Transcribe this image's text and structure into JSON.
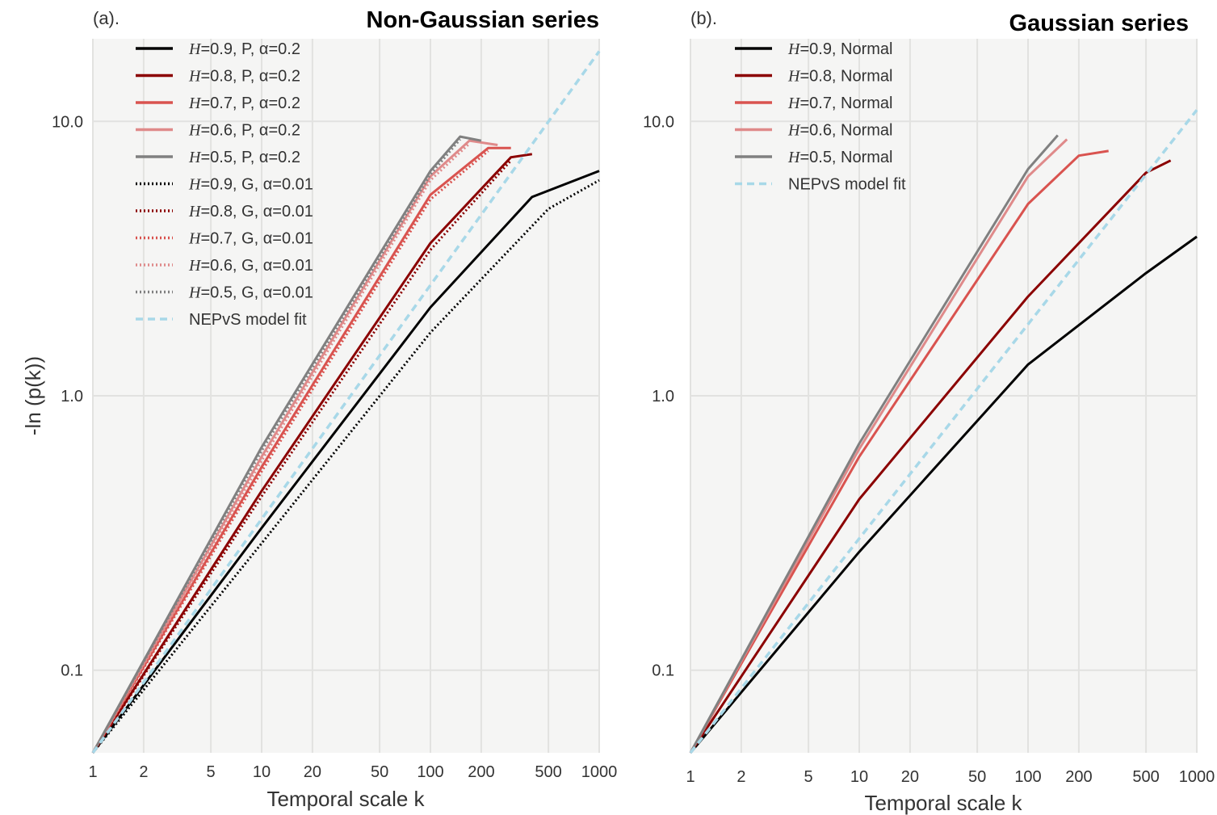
{
  "chart_data": [
    {
      "type": "line",
      "panel_label": "(a).",
      "title": "Non-Gaussian series",
      "xlabel": "Temporal scale k",
      "ylabel": "-ln (p(k))",
      "xscale": "log",
      "yscale": "log",
      "xlim": [
        1,
        1000
      ],
      "ylim": [
        0.05,
        20
      ],
      "xticks": [
        1,
        2,
        5,
        10,
        20,
        50,
        100,
        200,
        500,
        1000
      ],
      "xtick_labels": [
        "1",
        "2",
        "5",
        "10",
        "20",
        "50",
        "100",
        "200",
        "500",
        "1000"
      ],
      "yticks": [
        0.1,
        1.0,
        10.0
      ],
      "ytick_labels": [
        "0.1",
        "1.0",
        "10.0"
      ],
      "grid": true,
      "legend_position": "top-left",
      "series": [
        {
          "name": "H=0.9, P, α=0.2",
          "color": "#000000",
          "style": "solid",
          "x": [
            1,
            10,
            100,
            400,
            1000
          ],
          "y": [
            0.05,
            0.33,
            2.1,
            5.3,
            6.6
          ]
        },
        {
          "name": "H=0.8, P, α=0.2",
          "color": "#8b0000",
          "style": "solid",
          "x": [
            1,
            10,
            100,
            300,
            400
          ],
          "y": [
            0.05,
            0.45,
            3.6,
            7.4,
            7.6
          ]
        },
        {
          "name": "H=0.7, P, α=0.2",
          "color": "#d9534f",
          "style": "solid",
          "x": [
            1,
            10,
            100,
            220,
            300
          ],
          "y": [
            0.05,
            0.55,
            5.4,
            8.0,
            8.0
          ]
        },
        {
          "name": "H=0.6, P, α=0.2",
          "color": "#df8a8a",
          "style": "solid",
          "x": [
            1,
            10,
            100,
            170,
            250
          ],
          "y": [
            0.05,
            0.6,
            6.3,
            8.5,
            8.2
          ]
        },
        {
          "name": "H=0.5, P, α=0.2",
          "color": "#808080",
          "style": "solid",
          "x": [
            1,
            10,
            100,
            150,
            200
          ],
          "y": [
            0.05,
            0.65,
            6.6,
            8.8,
            8.5
          ]
        },
        {
          "name": "H=0.9, G, α=0.01",
          "color": "#000000",
          "style": "dotted",
          "x": [
            1,
            10,
            100,
            500,
            1000
          ],
          "y": [
            0.05,
            0.29,
            1.7,
            4.8,
            6.1
          ]
        },
        {
          "name": "H=0.8, G, α=0.01",
          "color": "#8b0000",
          "style": "dotted",
          "x": [
            1,
            10,
            100,
            300
          ],
          "y": [
            0.05,
            0.43,
            3.4,
            7.2
          ]
        },
        {
          "name": "H=0.7, G, α=0.01",
          "color": "#d9534f",
          "style": "dotted",
          "x": [
            1,
            10,
            100,
            220
          ],
          "y": [
            0.05,
            0.53,
            5.2,
            7.8
          ]
        },
        {
          "name": "H=0.6, G, α=0.01",
          "color": "#df8a8a",
          "style": "dotted",
          "x": [
            1,
            10,
            100,
            170
          ],
          "y": [
            0.05,
            0.58,
            6.1,
            8.3
          ]
        },
        {
          "name": "H=0.5, G, α=0.01",
          "color": "#808080",
          "style": "dotted",
          "x": [
            1,
            10,
            100,
            150
          ],
          "y": [
            0.05,
            0.63,
            6.4,
            8.6
          ]
        },
        {
          "name": "NEPvS model fit",
          "color": "#a8d8e8",
          "style": "dashed",
          "x": [
            1,
            1000
          ],
          "y": [
            0.05,
            18
          ]
        }
      ]
    },
    {
      "type": "line",
      "panel_label": "(b).",
      "title": "Gaussian series",
      "xlabel": "Temporal scale k",
      "ylabel": "",
      "xscale": "log",
      "yscale": "log",
      "xlim": [
        1,
        1000
      ],
      "ylim": [
        0.05,
        20
      ],
      "xticks": [
        1,
        2,
        5,
        10,
        20,
        50,
        100,
        200,
        500,
        1000
      ],
      "xtick_labels": [
        "1",
        "2",
        "5",
        "10",
        "20",
        "50",
        "100",
        "200",
        "500",
        "1000"
      ],
      "yticks": [
        0.1,
        1.0,
        10.0
      ],
      "ytick_labels": [
        "0.1",
        "1.0",
        "10.0"
      ],
      "grid": true,
      "legend_position": "top-left",
      "series": [
        {
          "name": "H=0.9, Normal",
          "color": "#000000",
          "style": "solid",
          "x": [
            1,
            10,
            100,
            500,
            1000
          ],
          "y": [
            0.05,
            0.27,
            1.3,
            2.8,
            3.8
          ]
        },
        {
          "name": "H=0.8, Normal",
          "color": "#8b0000",
          "style": "solid",
          "x": [
            1,
            10,
            100,
            500,
            700
          ],
          "y": [
            0.05,
            0.42,
            2.3,
            6.5,
            7.2
          ]
        },
        {
          "name": "H=0.7, Normal",
          "color": "#d9534f",
          "style": "solid",
          "x": [
            1,
            10,
            100,
            200,
            300
          ],
          "y": [
            0.05,
            0.6,
            5.0,
            7.5,
            7.8
          ]
        },
        {
          "name": "H=0.6, Normal",
          "color": "#df8a8a",
          "style": "solid",
          "x": [
            1,
            10,
            100,
            170
          ],
          "y": [
            0.05,
            0.64,
            6.3,
            8.6
          ]
        },
        {
          "name": "H=0.5, Normal",
          "color": "#808080",
          "style": "solid",
          "x": [
            1,
            10,
            100,
            150
          ],
          "y": [
            0.05,
            0.67,
            6.7,
            8.9
          ]
        },
        {
          "name": "NEPvS model fit",
          "color": "#a8d8e8",
          "style": "dashed",
          "x": [
            1,
            1000
          ],
          "y": [
            0.05,
            11
          ]
        }
      ]
    }
  ]
}
